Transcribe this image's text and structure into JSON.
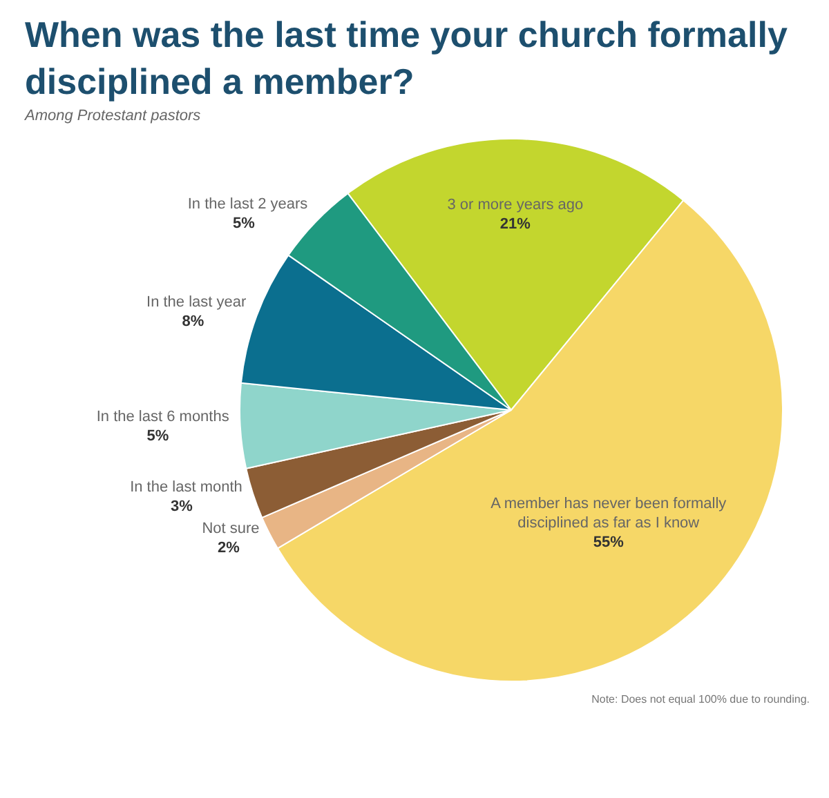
{
  "chart_data": {
    "type": "pie",
    "title": "When was the last time your church formally disciplined a member?",
    "subtitle": "Among Protestant pastors",
    "categories": [
      "3 or more years ago",
      "A member has never been formally disciplined as far as I know",
      "Not sure",
      "In the last month",
      "In the last 6 months",
      "In the last year",
      "In the last 2 years"
    ],
    "values": [
      21,
      55,
      2,
      3,
      5,
      8,
      5
    ],
    "value_labels": [
      "21%",
      "55%",
      "2%",
      "3%",
      "5%",
      "8%",
      "5%"
    ],
    "colors": [
      "#c3d62e",
      "#f6d767",
      "#e8b585",
      "#8c5d35",
      "#8fd5cb",
      "#0b6f8f",
      "#1f9a80"
    ],
    "annotations": [
      "Note: Does not equal 100% due to rounding."
    ],
    "legend": false
  }
}
